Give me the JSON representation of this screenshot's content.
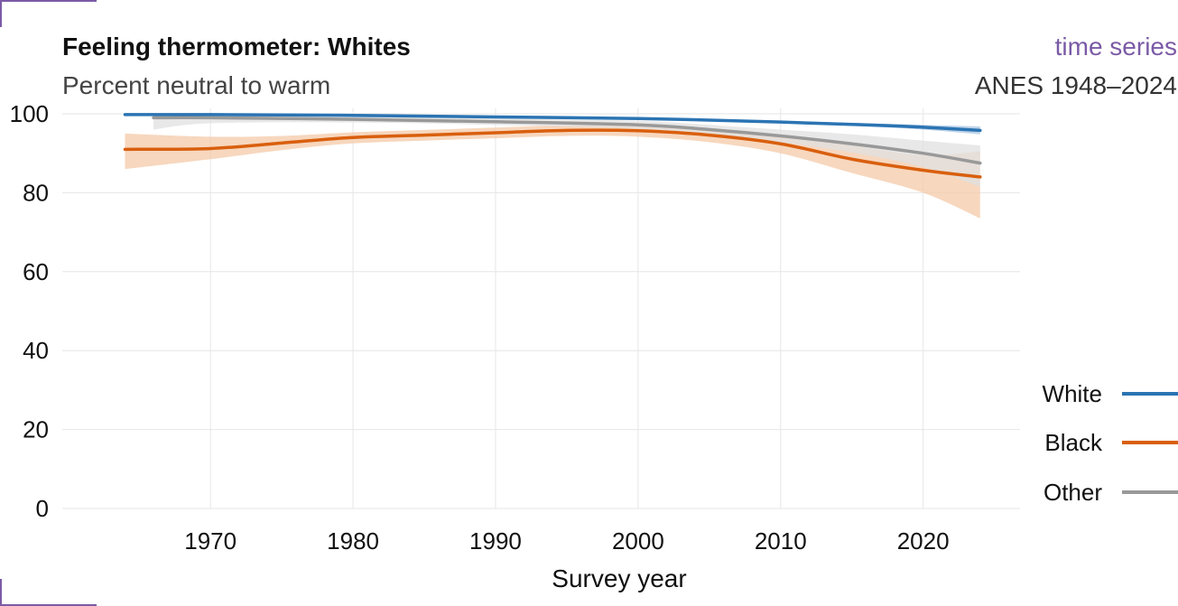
{
  "header": {
    "title": "Feeling thermometer: Whites",
    "subtitle": "Percent neutral to warm",
    "tag": "time series",
    "source": "ANES 1948–2024"
  },
  "colors": {
    "accent": "#7b5aa6",
    "grid": "#e6e6e6"
  },
  "chart_data": {
    "type": "line",
    "title": "Feeling thermometer: Whites",
    "subtitle": "Percent neutral to warm",
    "xlabel": "Survey year",
    "ylabel": "",
    "xlim": [
      1959.6,
      2026.8
    ],
    "ylim": [
      0,
      100
    ],
    "x_ticks": [
      1970,
      1980,
      1990,
      2000,
      2010,
      2020
    ],
    "y_ticks": [
      0,
      20,
      40,
      60,
      80,
      100
    ],
    "grid": true,
    "legend_position": "bottom-right",
    "series": [
      {
        "name": "White",
        "color": "#2b74b3",
        "band_color": "#a9c6e3",
        "x": [
          1964,
          1970,
          1980,
          1990,
          2000,
          2010,
          2016,
          2020,
          2024
        ],
        "y": [
          99.8,
          99.8,
          99.6,
          99.2,
          98.8,
          97.9,
          97.2,
          96.6,
          95.8
        ],
        "lower": [
          99.6,
          99.6,
          99.4,
          99.0,
          98.6,
          97.6,
          96.8,
          96.0,
          94.8
        ],
        "upper": [
          100,
          100,
          99.8,
          99.4,
          99.0,
          98.2,
          97.6,
          97.2,
          96.8
        ]
      },
      {
        "name": "Black",
        "color": "#d95f0e",
        "band_color": "#f4c9a8",
        "x": [
          1964,
          1970,
          1975,
          1980,
          1985,
          1990,
          1995,
          2000,
          2005,
          2010,
          2015,
          2020,
          2024
        ],
        "y": [
          91.0,
          91.2,
          92.6,
          94.0,
          94.6,
          95.2,
          95.8,
          95.7,
          94.6,
          92.4,
          88.5,
          85.7,
          84.0
        ],
        "lower": [
          86.0,
          88.5,
          90.8,
          92.5,
          93.2,
          93.8,
          94.4,
          94.2,
          92.8,
          90.0,
          85.0,
          80.0,
          73.5
        ],
        "upper": [
          95.0,
          94.2,
          94.4,
          95.3,
          95.9,
          96.5,
          97.1,
          97.1,
          96.4,
          94.8,
          92.0,
          89.5,
          90.5
        ]
      },
      {
        "name": "Other",
        "color": "#999999",
        "band_color": "#e0e0e0",
        "x": [
          1966,
          1970,
          1980,
          1990,
          2000,
          2005,
          2010,
          2015,
          2020,
          2024
        ],
        "y": [
          99.0,
          99.0,
          98.6,
          98.0,
          97.2,
          96.0,
          94.4,
          92.4,
          90.0,
          87.5
        ],
        "lower": [
          96.0,
          97.6,
          97.8,
          97.2,
          96.2,
          94.8,
          92.8,
          90.2,
          86.5,
          81.5
        ],
        "upper": [
          100,
          100,
          99.4,
          98.8,
          98.2,
          97.2,
          96.0,
          94.8,
          93.2,
          92.0
        ]
      }
    ]
  }
}
